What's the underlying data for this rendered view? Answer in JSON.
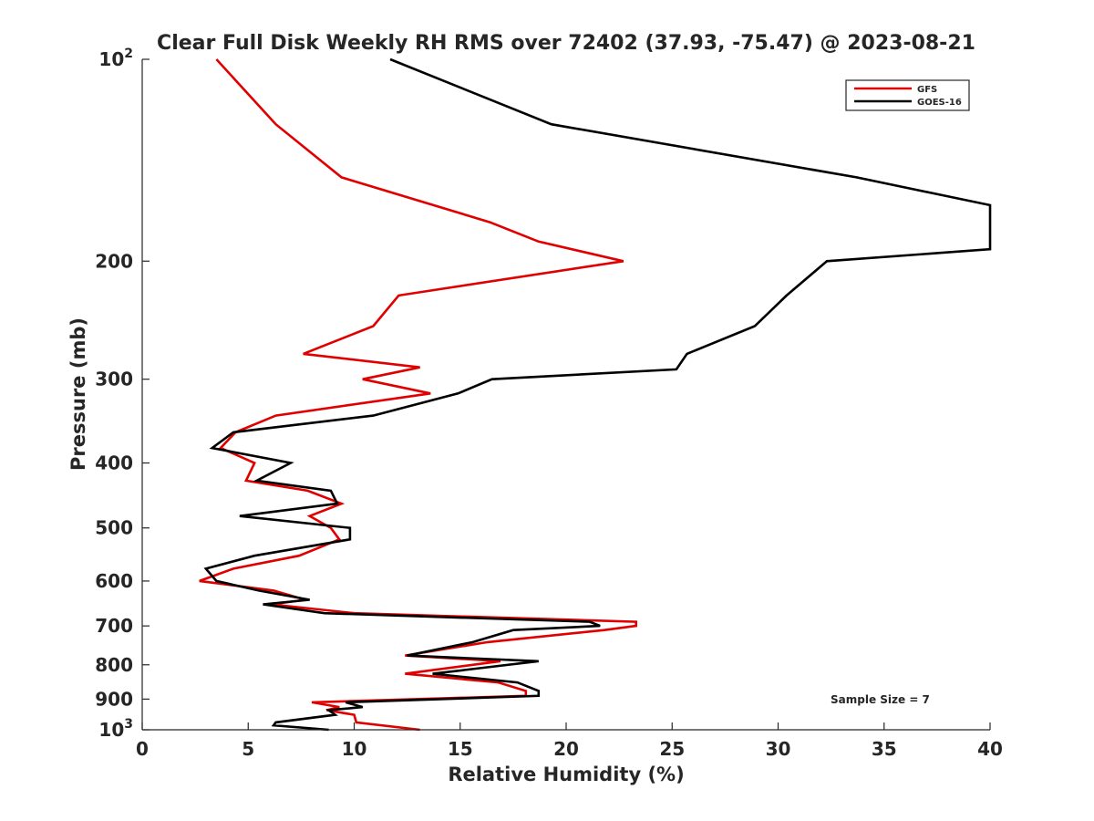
{
  "chart_data": {
    "type": "line",
    "title": "Clear Full Disk Weekly RH RMS over 72402 (37.93, -75.47) @ 2023-08-21",
    "xlabel": "Relative Humidity (%)",
    "ylabel": "Pressure (mb)",
    "xlim": [
      0,
      40
    ],
    "ylim": [
      100,
      1000
    ],
    "yscale": "log",
    "y_reversed": true,
    "xticks": [
      0,
      5,
      10,
      15,
      20,
      25,
      30,
      35,
      40
    ],
    "xtick_labels": [
      "0",
      "5",
      "10",
      "15",
      "20",
      "25",
      "30",
      "35",
      "40"
    ],
    "yticks": [
      100,
      200,
      300,
      400,
      500,
      600,
      700,
      800,
      900,
      1000
    ],
    "ytick_labels": [
      {
        "base": "10",
        "exp": "2"
      },
      {
        "base": "200",
        "exp": ""
      },
      {
        "base": "300",
        "exp": ""
      },
      {
        "base": "400",
        "exp": ""
      },
      {
        "base": "500",
        "exp": ""
      },
      {
        "base": "600",
        "exp": ""
      },
      {
        "base": "700",
        "exp": ""
      },
      {
        "base": "800",
        "exp": ""
      },
      {
        "base": "900",
        "exp": ""
      },
      {
        "base": "10",
        "exp": "3"
      }
    ],
    "legend_position": "top-right",
    "annotation": "Sample Size = 7",
    "series": [
      {
        "name": "GFS",
        "color": "#e00000",
        "points": [
          [
            3.5,
            100
          ],
          [
            6.3,
            125
          ],
          [
            9.4,
            150
          ],
          [
            16.4,
            175
          ],
          [
            18.7,
            187
          ],
          [
            22.7,
            200
          ],
          [
            12.1,
            225
          ],
          [
            10.9,
            250
          ],
          [
            7.6,
            275
          ],
          [
            13.1,
            288
          ],
          [
            10.4,
            300
          ],
          [
            13.6,
            315
          ],
          [
            6.3,
            340
          ],
          [
            4.4,
            360
          ],
          [
            3.7,
            380
          ],
          [
            5.3,
            400
          ],
          [
            4.9,
            425
          ],
          [
            7.8,
            440
          ],
          [
            9.4,
            460
          ],
          [
            7.9,
            480
          ],
          [
            8.9,
            500
          ],
          [
            9.3,
            520
          ],
          [
            7.4,
            550
          ],
          [
            4.3,
            575
          ],
          [
            2.7,
            600
          ],
          [
            6.2,
            620
          ],
          [
            7.7,
            640
          ],
          [
            6.1,
            650
          ],
          [
            10.0,
            670
          ],
          [
            23.3,
            690
          ],
          [
            23.3,
            700
          ],
          [
            21.8,
            710
          ],
          [
            16.3,
            740
          ],
          [
            12.4,
            775
          ],
          [
            16.9,
            790
          ],
          [
            12.4,
            825
          ],
          [
            16.8,
            850
          ],
          [
            18.1,
            875
          ],
          [
            18.1,
            890
          ],
          [
            8.0,
            910
          ],
          [
            9.3,
            925
          ],
          [
            8.7,
            935
          ],
          [
            10.0,
            950
          ],
          [
            10.1,
            975
          ],
          [
            13.1,
            1000
          ]
        ]
      },
      {
        "name": "GOES-16",
        "color": "#000000",
        "points": [
          [
            11.7,
            100
          ],
          [
            19.3,
            125
          ],
          [
            33.7,
            150
          ],
          [
            40.0,
            165
          ],
          [
            40.0,
            192
          ],
          [
            32.3,
            200
          ],
          [
            30.4,
            225
          ],
          [
            28.9,
            250
          ],
          [
            25.7,
            275
          ],
          [
            25.2,
            290
          ],
          [
            16.5,
            300
          ],
          [
            14.9,
            315
          ],
          [
            10.9,
            340
          ],
          [
            4.3,
            360
          ],
          [
            3.3,
            380
          ],
          [
            7.0,
            400
          ],
          [
            5.4,
            425
          ],
          [
            8.9,
            440
          ],
          [
            9.2,
            460
          ],
          [
            4.6,
            480
          ],
          [
            9.8,
            500
          ],
          [
            9.8,
            520
          ],
          [
            5.3,
            550
          ],
          [
            3.0,
            575
          ],
          [
            3.5,
            600
          ],
          [
            5.5,
            620
          ],
          [
            7.9,
            640
          ],
          [
            5.7,
            650
          ],
          [
            8.6,
            670
          ],
          [
            21.1,
            690
          ],
          [
            21.6,
            700
          ],
          [
            17.5,
            710
          ],
          [
            15.6,
            740
          ],
          [
            12.5,
            775
          ],
          [
            18.7,
            790
          ],
          [
            13.7,
            825
          ],
          [
            17.7,
            850
          ],
          [
            18.7,
            875
          ],
          [
            18.7,
            890
          ],
          [
            9.6,
            910
          ],
          [
            10.4,
            925
          ],
          [
            8.8,
            935
          ],
          [
            9.1,
            950
          ],
          [
            6.3,
            975
          ],
          [
            6.2,
            985
          ],
          [
            8.8,
            1000
          ]
        ]
      }
    ]
  }
}
